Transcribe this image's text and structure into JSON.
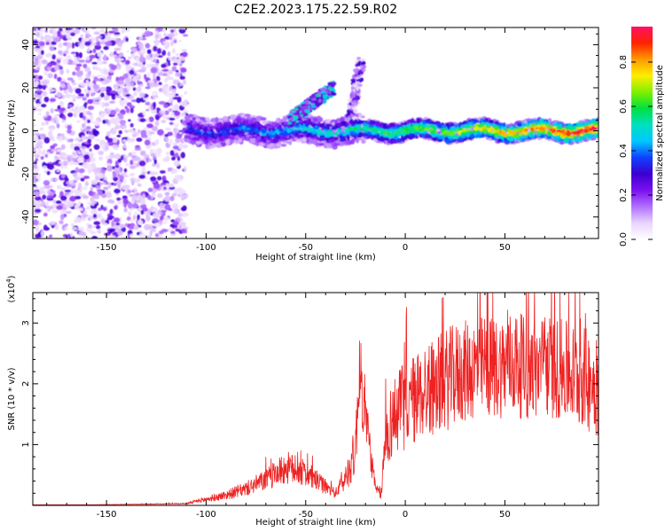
{
  "figure_title": "C2E2.2023.175.22.59.R02",
  "colors": {
    "snr_line": "#ee2222",
    "colormap": [
      "#ffffff",
      "#e9d4ff",
      "#b070ff",
      "#7a10f0",
      "#3c00d0",
      "#1040ff",
      "#00c8ff",
      "#00e0c0",
      "#00e040",
      "#80f000",
      "#ffee00",
      "#ff9900",
      "#ff2200",
      "#ff1166"
    ]
  },
  "chart_data": [
    {
      "type": "heatmap",
      "xlabel": "Height of straight line (km)",
      "ylabel": "Frequency (Hz)",
      "xlim": [
        -187,
        97
      ],
      "ylim": [
        -50,
        48
      ],
      "xticks": [
        -150,
        -100,
        -50,
        0,
        50
      ],
      "xtick_labels": [
        "-150",
        "-100",
        "-50",
        "0",
        "50"
      ],
      "yticks": [
        -40,
        -20,
        0,
        20,
        40
      ],
      "ytick_labels": [
        "-40",
        "-20",
        "0",
        "20",
        "40"
      ],
      "colorbar": {
        "label": "Normalized spectral amplitude",
        "range": [
          0,
          0.96
        ],
        "ticks": [
          0,
          0.2,
          0.4,
          0.6,
          0.8
        ],
        "tick_labels": [
          "0.0",
          "0.2",
          "0.4",
          "0.6",
          "0.8"
        ]
      },
      "features": [
        {
          "name": "noise_region",
          "x_range": [
            -187,
            -110
          ],
          "freq_range": [
            -50,
            48
          ],
          "amplitude": 0.25
        },
        {
          "name": "echo_trace",
          "x_range": [
            -110,
            97
          ],
          "freq_center": 0,
          "freq_halfwidth": 4,
          "amplitude_range": [
            0.35,
            0.95
          ]
        },
        {
          "name": "upward_branch",
          "x_range": [
            -58,
            -36
          ],
          "freq_range": [
            5,
            20
          ],
          "amplitude": 0.45
        },
        {
          "name": "secondary_branch",
          "x_range": [
            -28,
            -22
          ],
          "freq_range": [
            5,
            32
          ],
          "amplitude": 0.3
        }
      ]
    },
    {
      "type": "line",
      "xlabel": "Height of straight line (km)",
      "ylabel": "SNR (10 * v/v)",
      "y_scale_label": "(x10",
      "y_scale_exponent": "4",
      "y_scale_close": ")",
      "xlim": [
        -187,
        97
      ],
      "ylim": [
        0,
        3.5
      ],
      "xticks": [
        -150,
        -100,
        -50,
        0,
        50
      ],
      "xtick_labels": [
        "-150",
        "-100",
        "-50",
        "0",
        "50"
      ],
      "yticks": [
        1,
        2,
        3
      ],
      "ytick_labels": [
        "1",
        "2",
        "3"
      ],
      "grid": false,
      "series": [
        {
          "x": [
            -187,
            -160,
            -130,
            -110,
            -100,
            -95,
            -90,
            -85,
            -80,
            -75,
            -70,
            -65,
            -60,
            -55,
            -50,
            -45,
            -40,
            -35,
            -30,
            -25,
            -23,
            -21,
            -20,
            -15,
            -12,
            -10,
            -8,
            -5,
            0,
            5,
            10,
            15,
            20,
            25,
            30,
            35,
            40,
            45,
            50,
            55,
            60,
            65,
            70,
            75,
            80,
            85,
            90,
            97
          ],
          "y": [
            0.01,
            0.01,
            0.02,
            0.03,
            0.1,
            0.13,
            0.17,
            0.22,
            0.27,
            0.35,
            0.42,
            0.52,
            0.62,
            0.58,
            0.52,
            0.42,
            0.3,
            0.2,
            0.45,
            0.9,
            2.3,
            1.6,
            1.5,
            0.25,
            0.2,
            1.1,
            1.3,
            1.5,
            1.65,
            1.75,
            1.9,
            1.95,
            2.05,
            2.15,
            2.2,
            2.25,
            2.3,
            2.25,
            2.3,
            2.35,
            2.25,
            2.2,
            2.3,
            2.25,
            2.2,
            2.15,
            2.1,
            1.95
          ],
          "noise_amplitude": [
            0,
            0,
            0.005,
            0.01,
            0.05,
            0.06,
            0.08,
            0.1,
            0.12,
            0.15,
            0.18,
            0.22,
            0.28,
            0.25,
            0.22,
            0.18,
            0.12,
            0.08,
            0.22,
            0.45,
            0.7,
            0.5,
            0.5,
            0.12,
            0.1,
            0.5,
            0.6,
            0.7,
            0.75,
            0.75,
            0.8,
            0.8,
            0.85,
            0.85,
            0.85,
            0.85,
            0.85,
            0.85,
            0.85,
            0.9,
            0.85,
            0.85,
            0.85,
            0.85,
            0.85,
            0.85,
            0.85,
            0.85
          ]
        }
      ]
    }
  ]
}
